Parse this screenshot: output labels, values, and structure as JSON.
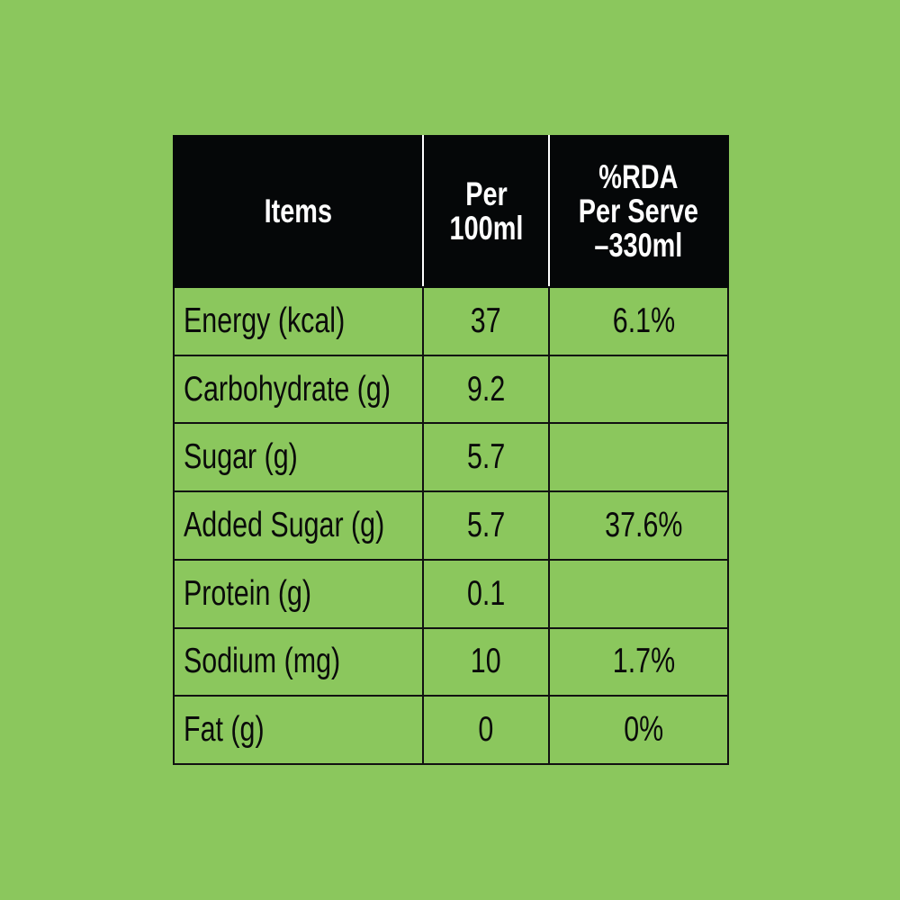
{
  "table": {
    "headers": {
      "items": "Items",
      "per100ml_line1": "Per",
      "per100ml_line2": "100ml",
      "rda_line1": "%RDA",
      "rda_line2": "Per Serve",
      "rda_line3": "–330ml"
    },
    "rows": [
      {
        "item": "Energy (kcal)",
        "per100ml": "37",
        "rda": "6.1%"
      },
      {
        "item": "Carbohydrate (g)",
        "per100ml": "9.2",
        "rda": ""
      },
      {
        "item": "Sugar (g)",
        "per100ml": "5.7",
        "rda": ""
      },
      {
        "item": "Added Sugar (g)",
        "per100ml": "5.7",
        "rda": "37.6%"
      },
      {
        "item": "Protein (g)",
        "per100ml": "0.1",
        "rda": ""
      },
      {
        "item": "Sodium (mg)",
        "per100ml": "10",
        "rda": "1.7%"
      },
      {
        "item": "Fat (g)",
        "per100ml": "0",
        "rda": "0%"
      }
    ]
  },
  "colors": {
    "background": "#8bc75d",
    "header_background": "#050708",
    "header_text": "#ffffff",
    "body_text": "#0a0a0a"
  }
}
